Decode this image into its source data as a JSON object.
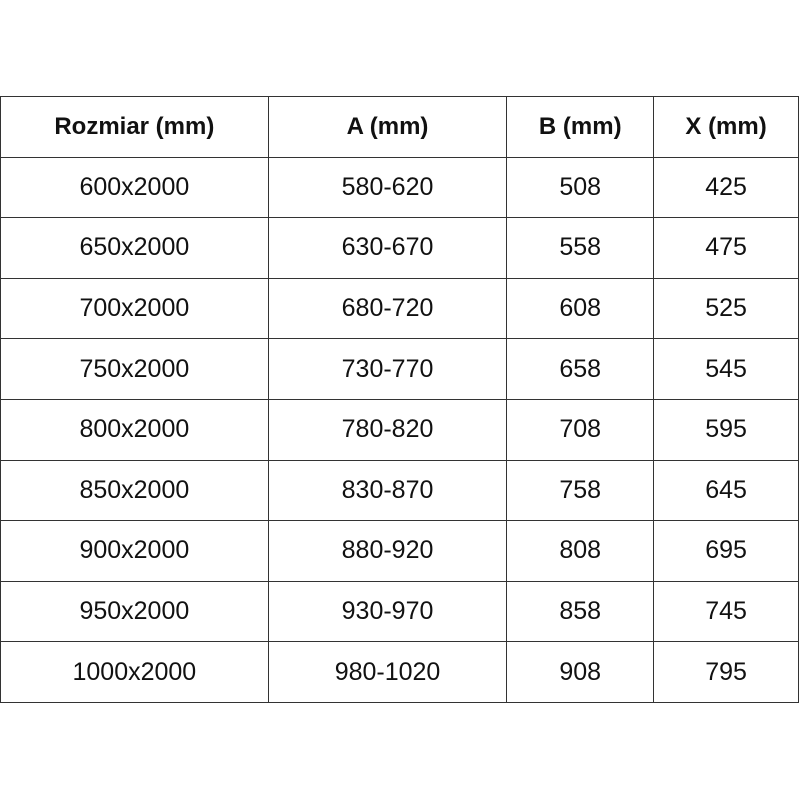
{
  "table": {
    "headers": [
      "Rozmiar (mm)",
      "A (mm)",
      "B (mm)",
      "X (mm)"
    ],
    "rows": [
      [
        "600x2000",
        "580-620",
        "508",
        "425"
      ],
      [
        "650x2000",
        "630-670",
        "558",
        "475"
      ],
      [
        "700x2000",
        "680-720",
        "608",
        "525"
      ],
      [
        "750x2000",
        "730-770",
        "658",
        "545"
      ],
      [
        "800x2000",
        "780-820",
        "708",
        "595"
      ],
      [
        "850x2000",
        "830-870",
        "758",
        "645"
      ],
      [
        "900x2000",
        "880-920",
        "808",
        "695"
      ],
      [
        "950x2000",
        "930-970",
        "858",
        "745"
      ],
      [
        "1000x2000",
        "980-1020",
        "908",
        "795"
      ]
    ]
  }
}
